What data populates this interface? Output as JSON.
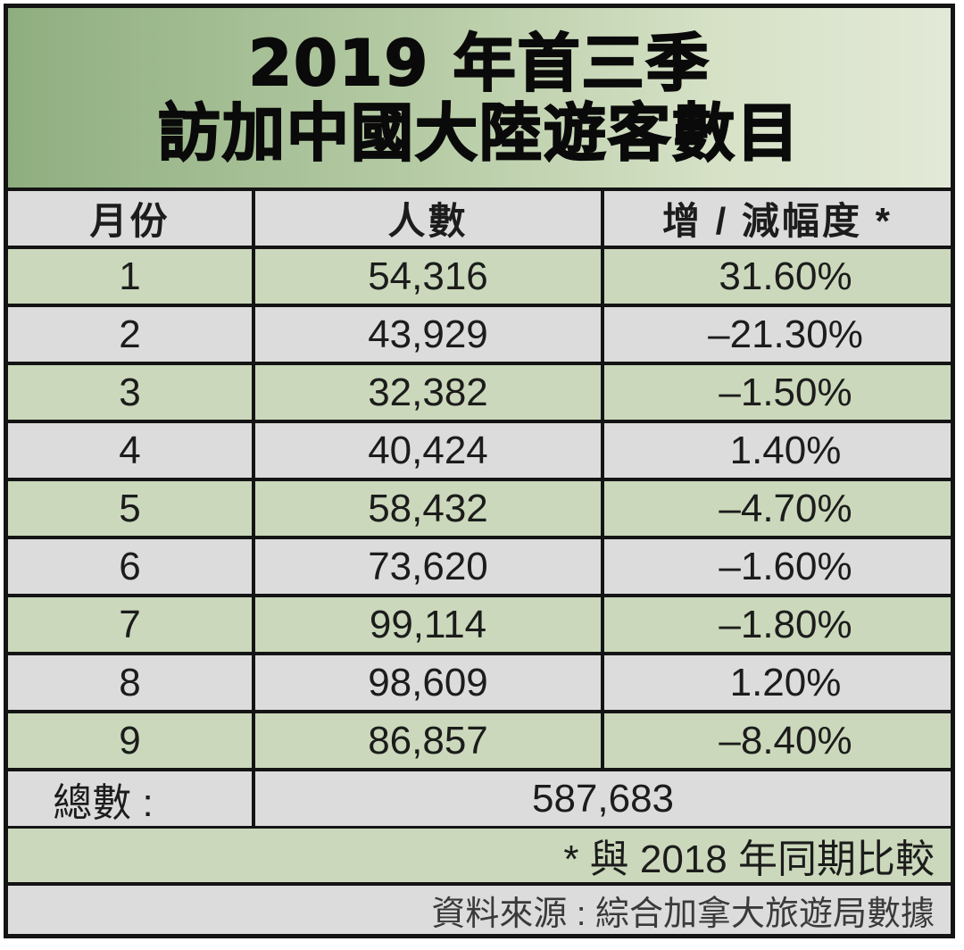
{
  "title": {
    "line1": "2019 年首三季",
    "line2": "訪加中國大陸遊客數目"
  },
  "chart_data": {
    "type": "table",
    "columns": [
      "月份",
      "人數",
      "增 / 減幅度 *"
    ],
    "rows": [
      {
        "month": "1",
        "count": "54,316",
        "change": "31.60%"
      },
      {
        "month": "2",
        "count": "43,929",
        "change": "–21.30%"
      },
      {
        "month": "3",
        "count": "32,382",
        "change": "–1.50%"
      },
      {
        "month": "4",
        "count": "40,424",
        "change": "1.40%"
      },
      {
        "month": "5",
        "count": "58,432",
        "change": "–4.70%"
      },
      {
        "month": "6",
        "count": "73,620",
        "change": "–1.60%"
      },
      {
        "month": "7",
        "count": "99,114",
        "change": "–1.80%"
      },
      {
        "month": "8",
        "count": "98,609",
        "change": "1.20%"
      },
      {
        "month": "9",
        "count": "86,857",
        "change": "–8.40%"
      }
    ],
    "total_label": "總數 :",
    "total_value": "587,683",
    "note": "* 與 2018 年同期比較",
    "source": "資料來源 : 綜合加拿大旅遊局數據"
  },
  "colors": {
    "row_green": "#cbd8bb",
    "row_grey": "#dcdcdc",
    "border": "#141414",
    "title_gradient_start": "#8fae80",
    "title_gradient_end": "#e2e9d7"
  }
}
